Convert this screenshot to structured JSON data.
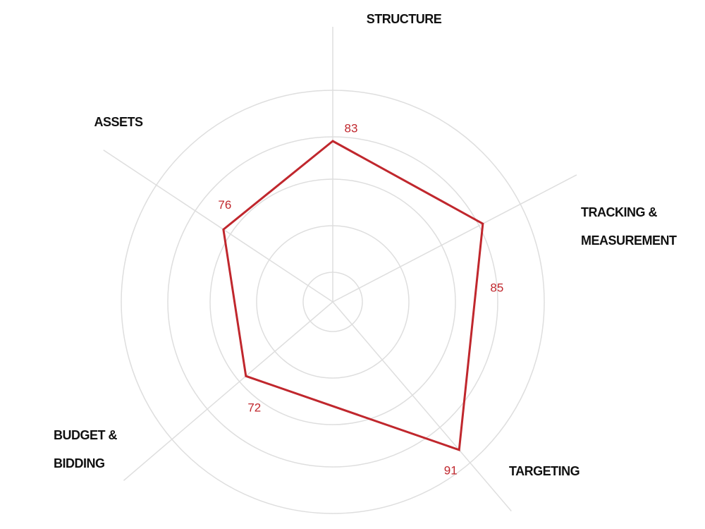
{
  "chart_data": {
    "type": "radar",
    "categories": [
      "STRUCTURE",
      "TRACKING & MEASUREMENT",
      "TARGETING",
      "BUDGET & BIDDING",
      "ASSETS"
    ],
    "values": [
      83,
      85,
      91,
      72,
      76
    ],
    "color": "#c0272d",
    "rlim": [
      45,
      95
    ],
    "rticks": [
      52,
      63,
      74,
      84,
      95
    ],
    "grid": true
  }
}
